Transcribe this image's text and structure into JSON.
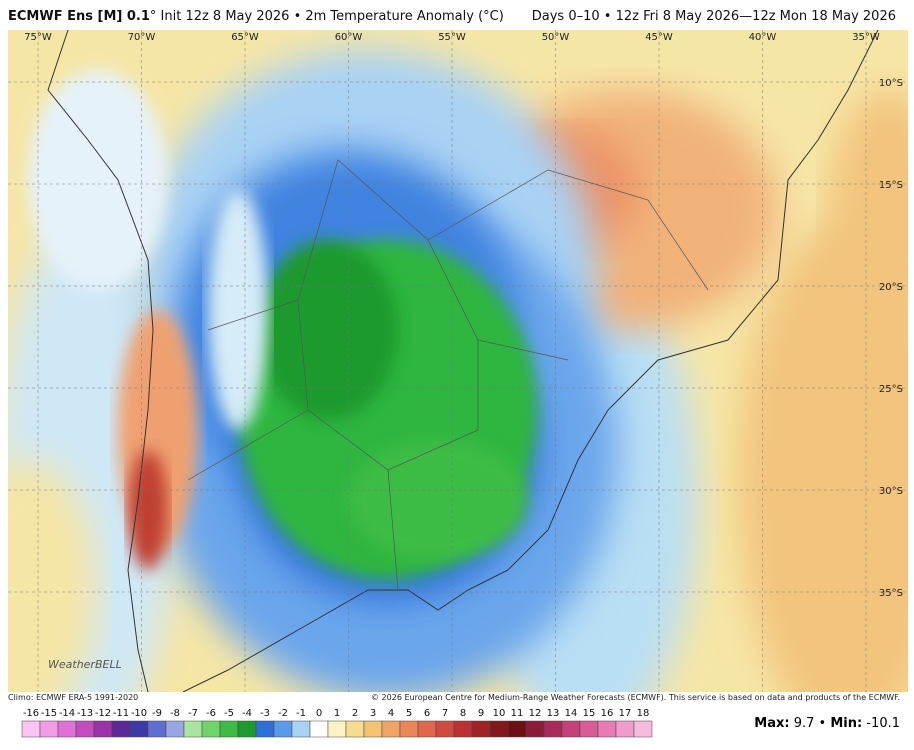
{
  "header": {
    "title": "ECMWF Ens [M] 0.1",
    "subtitle": "° Init 12z 8 May 2026 • 2m Temperature Anomaly (°C)",
    "period": "Days 0–10 • 12z Fri 8 May 2026—12z Mon 18 May 2026"
  },
  "map": {
    "lon_labels": [
      "75°W",
      "70°W",
      "65°W",
      "60°W",
      "55°W",
      "50°W",
      "45°W",
      "40°W",
      "35°W"
    ],
    "lat_labels": [
      "10°S",
      "15°S",
      "20°S",
      "25°S",
      "30°S",
      "35°S"
    ],
    "logo": "WeatherBELL"
  },
  "footer": {
    "climo": "Climo: ECMWF ERA-5 1991-2020",
    "copyright": "© 2026 European Centre for Medium-Range Weather Forecasts (ECMWF). This service is based on data and products of the ECMWF."
  },
  "colorbar": {
    "values": [
      -16,
      -15,
      -14,
      -13,
      -12,
      -11,
      -10,
      -9,
      -8,
      -7,
      -6,
      -5,
      -4,
      -3,
      -2,
      -1,
      0,
      1,
      2,
      3,
      4,
      5,
      6,
      7,
      8,
      9,
      10,
      11,
      12,
      13,
      14,
      15,
      16,
      17,
      18
    ],
    "colors": [
      "#fbc4f2",
      "#f29be6",
      "#e070d6",
      "#c44cbd",
      "#9a32a8",
      "#5c2a96",
      "#3b3aa6",
      "#5f6fd0",
      "#9aa6e4",
      "#a8e6a0",
      "#6fd46a",
      "#3cbc44",
      "#1f9a2e",
      "#2f6fd8",
      "#5b9ae8",
      "#a9d2f4",
      "#ffffff",
      "#fbf3c4",
      "#f6dc8e",
      "#f3c275",
      "#eea565",
      "#e9865a",
      "#e0664c",
      "#d14a3e",
      "#bb3232",
      "#9e2226",
      "#82181c",
      "#6c1014",
      "#8a1c3a",
      "#a82a5a",
      "#c44078",
      "#d85c96",
      "#e67cb2",
      "#f09cca",
      "#f6bcde"
    ]
  },
  "stats": {
    "max_label": "Max:",
    "max": 9.7,
    "min_label": "Min:",
    "min": -10.1
  }
}
